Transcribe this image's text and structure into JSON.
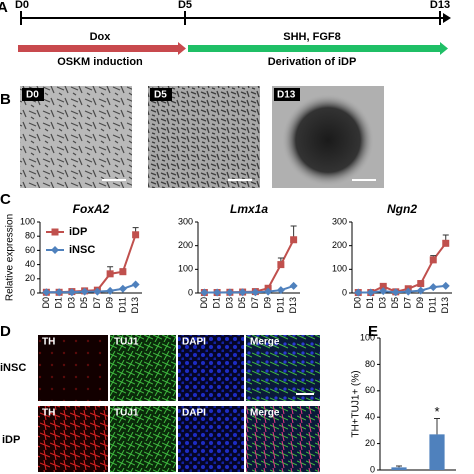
{
  "panel_labels": [
    "A",
    "B",
    "C",
    "D",
    "E"
  ],
  "timeline": {
    "days": [
      "D0",
      "D5",
      "D13"
    ],
    "stages": [
      {
        "top": "Dox",
        "bottom": "OSKM induction"
      },
      {
        "top": "SHH, FGF8",
        "bottom": "Derivation of iDP"
      }
    ]
  },
  "images_b": [
    "D0",
    "D5",
    "D13"
  ],
  "images_d": {
    "rows": [
      "iNSC",
      "iDP"
    ],
    "columns": [
      "TH",
      "TUJ1",
      "DAPI",
      "Merge"
    ]
  },
  "chart_data": [
    {
      "type": "line",
      "title": "FoxA2",
      "ylabel": "Relative expression",
      "legend": "upper left",
      "categories": [
        "D0",
        "D1",
        "D3",
        "D5",
        "D7",
        "D9",
        "D11",
        "D13"
      ],
      "ylim": [
        0,
        100
      ],
      "yticks": [
        0,
        20,
        40,
        60,
        80,
        100
      ],
      "series": [
        {
          "name": "iDP",
          "color": "#c0504d",
          "marker": "square",
          "values": [
            1,
            1,
            2,
            3,
            4,
            27,
            30,
            82
          ],
          "errors": [
            1,
            1,
            1,
            1,
            2,
            10,
            4,
            10
          ]
        },
        {
          "name": "iNSC",
          "color": "#4f81bd",
          "marker": "diamond",
          "values": [
            1,
            1,
            1,
            2,
            2,
            3,
            6,
            12
          ]
        }
      ]
    },
    {
      "type": "line",
      "title": "Lmx1a",
      "categories": [
        "D0",
        "D1",
        "D3",
        "D5",
        "D7",
        "D9",
        "D11",
        "D13"
      ],
      "ylim": [
        0,
        300
      ],
      "yticks": [
        0,
        100,
        200,
        300
      ],
      "series": [
        {
          "name": "iDP",
          "color": "#c0504d",
          "marker": "square",
          "values": [
            2,
            2,
            3,
            4,
            6,
            20,
            120,
            225
          ],
          "errors": [
            1,
            1,
            1,
            1,
            2,
            8,
            28,
            58
          ]
        },
        {
          "name": "iNSC",
          "color": "#4f81bd",
          "marker": "diamond",
          "values": [
            2,
            2,
            2,
            3,
            3,
            6,
            12,
            30
          ]
        }
      ]
    },
    {
      "type": "line",
      "title": "Ngn2",
      "categories": [
        "D0",
        "D1",
        "D3",
        "D5",
        "D7",
        "D9",
        "D11",
        "D13"
      ],
      "ylim": [
        0,
        300
      ],
      "yticks": [
        0,
        100,
        200,
        300
      ],
      "series": [
        {
          "name": "iDP",
          "color": "#c0504d",
          "marker": "square",
          "values": [
            2,
            2,
            28,
            5,
            18,
            40,
            140,
            210
          ],
          "errors": [
            1,
            1,
            12,
            2,
            8,
            10,
            18,
            35
          ]
        },
        {
          "name": "iNSC",
          "color": "#4f81bd",
          "marker": "diamond",
          "values": [
            2,
            2,
            8,
            3,
            6,
            10,
            25,
            30
          ]
        }
      ]
    },
    {
      "type": "bar",
      "ylabel": "TH+TUJ1+ (%)",
      "categories": [
        null,
        null
      ],
      "values": [
        2,
        27
      ],
      "errors": [
        1,
        12
      ],
      "color": "#4f81bd",
      "annotation": "*",
      "ylim": [
        0,
        100
      ],
      "yticks": [
        0,
        20,
        40,
        60,
        80,
        100
      ]
    }
  ]
}
